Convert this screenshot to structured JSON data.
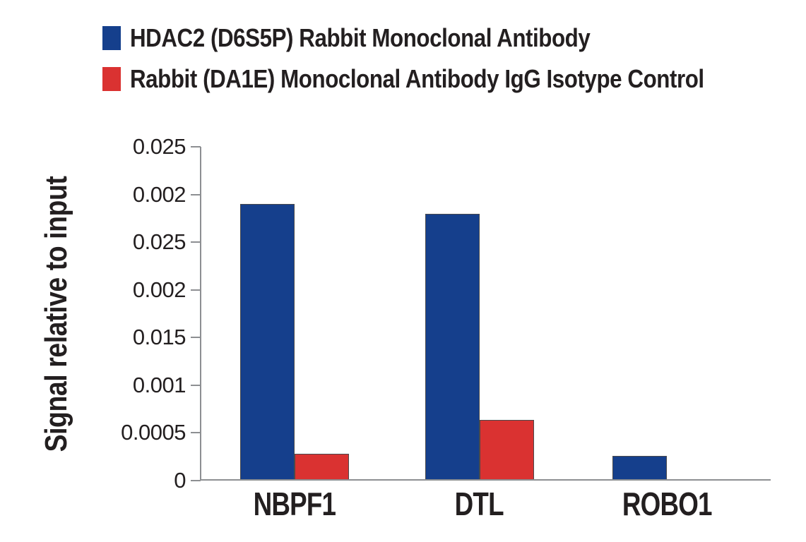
{
  "figure": {
    "background": "#ffffff",
    "text_color": "#231f20",
    "axis_color": "#8d8f92",
    "bar_outline_color": "#4a4a4c"
  },
  "legend": {
    "items": [
      {
        "swatch": "blue-square",
        "color": "#153f8c",
        "label": "HDAC2 (D6S5P) Rabbit Monoclonal Antibody"
      },
      {
        "swatch": "red-square",
        "color": "#da3231",
        "label": "Rabbit (DA1E) Monoclonal Antibody IgG Isotype Control"
      }
    ]
  },
  "chart_data": {
    "type": "bar",
    "title": "",
    "xlabel": "",
    "ylabel": "Signal relative to input",
    "categories": [
      "NBPF1",
      "DTL",
      "ROBO1"
    ],
    "series": [
      {
        "name": "HDAC2 (D6S5P) Rabbit Monoclonal Antibody",
        "color": "#153f8c",
        "values": [
          0.0029,
          0.0028,
          0.00026
        ]
      },
      {
        "name": "Rabbit (DA1E) Monoclonal Antibody IgG Isotype Control",
        "color": "#da3231",
        "values": [
          0.00028,
          0.00064,
          1e-05
        ]
      }
    ],
    "ylim": [
      0,
      0.0035
    ],
    "y_tick_labels_top_to_bottom": [
      "0.025",
      "0.002",
      "0.025",
      "0.002",
      "0.015",
      "0.001",
      "0.0005",
      "0"
    ],
    "grid": false,
    "legend_position": "top-left"
  }
}
